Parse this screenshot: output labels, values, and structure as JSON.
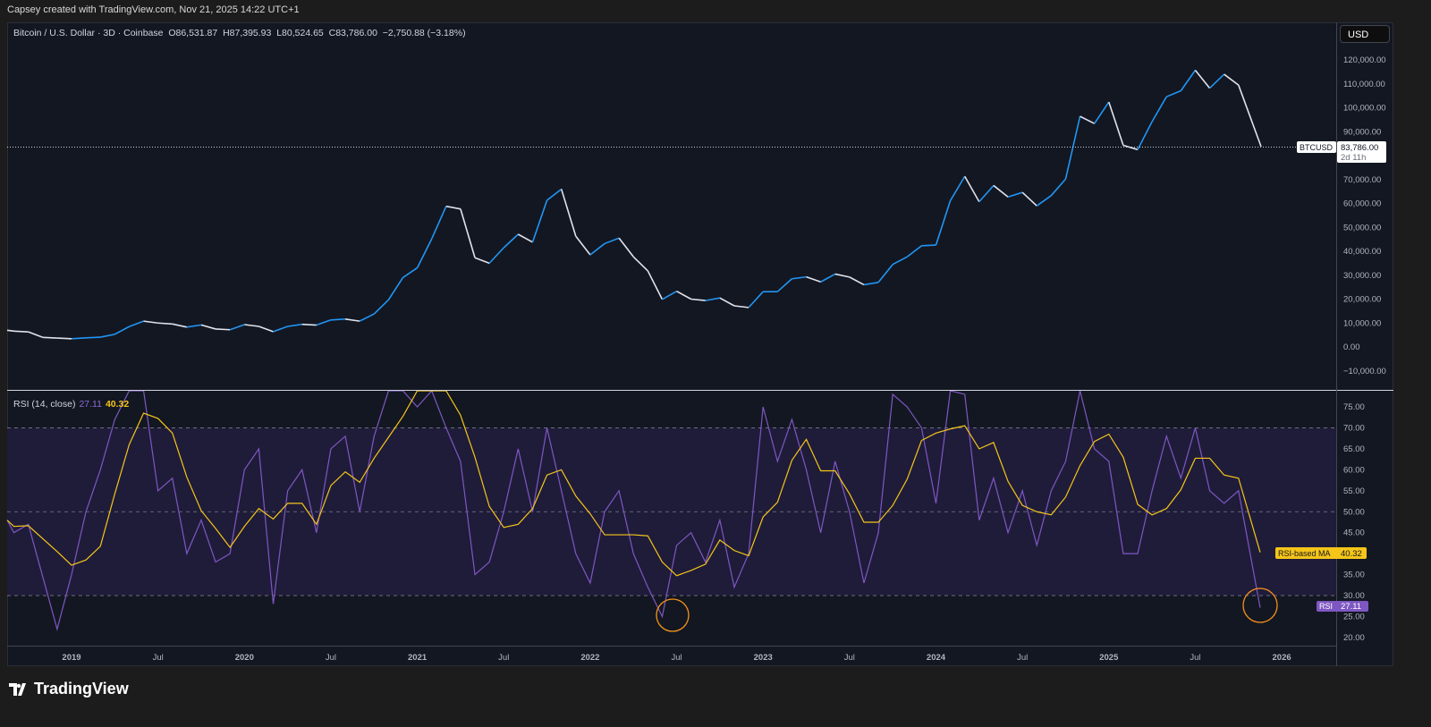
{
  "caption": "Capsey created with TradingView.com, Nov 21, 2025 14:22 UTC+1",
  "header": {
    "symbol": "Bitcoin / U.S. Dollar · 3D · Coinbase",
    "open": "O86,531.87",
    "high": "H87,395.93",
    "low": "L80,524.65",
    "close": "C83,786.00",
    "change": "−2,750.88 (−3.18%)"
  },
  "currency_button": "USD",
  "price_tag": {
    "symbol": "BTCUSD",
    "price": "83,786.00",
    "countdown": "2d 11h"
  },
  "rsi_legend": {
    "title": "RSI (14, close)",
    "rsi": "27.11",
    "ma": "40.32"
  },
  "rsi_tags": {
    "ma_label": "RSI-based MA",
    "ma_value": "40.32",
    "rsi_label": "RSI",
    "rsi_value": "27.11"
  },
  "logo": "TradingView",
  "colors": {
    "background": "#131722",
    "up": "#2196f3",
    "down": "#e0e3eb",
    "rsi": "#7e57c2",
    "rsi_ma": "#f5c518",
    "band": "#1f1c3a",
    "highlight_circle": "#f7931a"
  },
  "chart_data": [
    {
      "type": "line",
      "title": "Bitcoin / U.S. Dollar · 3D · Coinbase",
      "y_ticks": [
        "120,000.00",
        "110,000.00",
        "100,000.00",
        "90,000.00",
        "70,000.00",
        "60,000.00",
        "50,000.00",
        "40,000.00",
        "30,000.00",
        "20,000.00",
        "10,000.00",
        "0.00",
        "−10,000.00"
      ],
      "y_tick_values": [
        120000,
        110000,
        100000,
        90000,
        70000,
        60000,
        50000,
        40000,
        30000,
        20000,
        10000,
        0,
        -10000
      ],
      "ylim": [
        -13000,
        133000
      ],
      "x_ticks": [
        "2019",
        "Jul",
        "2020",
        "Jul",
        "2021",
        "Jul",
        "2022",
        "Jul",
        "2023",
        "Jul",
        "2024",
        "Jul",
        "2025",
        "Jul",
        "2026"
      ],
      "x_tick_dates": [
        "2019-01",
        "2019-07",
        "2020-01",
        "2020-07",
        "2021-01",
        "2021-07",
        "2022-01",
        "2022-07",
        "2023-01",
        "2023-07",
        "2024-01",
        "2024-07",
        "2025-01",
        "2025-07",
        "2026-01"
      ],
      "last_price": 83786,
      "series": [
        {
          "x": [
            "2018-08",
            "2018-09",
            "2018-10",
            "2018-11",
            "2018-12",
            "2019-01",
            "2019-02",
            "2019-03",
            "2019-04",
            "2019-05",
            "2019-06",
            "2019-07",
            "2019-08",
            "2019-09",
            "2019-10",
            "2019-11",
            "2019-12",
            "2020-01",
            "2020-02",
            "2020-03",
            "2020-04",
            "2020-05",
            "2020-06",
            "2020-07",
            "2020-08",
            "2020-09",
            "2020-10",
            "2020-11",
            "2020-12",
            "2021-01",
            "2021-02",
            "2021-03",
            "2021-04",
            "2021-05",
            "2021-06",
            "2021-07",
            "2021-08",
            "2021-09",
            "2021-10",
            "2021-11",
            "2021-12",
            "2022-01",
            "2022-02",
            "2022-03",
            "2022-04",
            "2022-05",
            "2022-06",
            "2022-07",
            "2022-08",
            "2022-09",
            "2022-10",
            "2022-11",
            "2022-12",
            "2023-01",
            "2023-02",
            "2023-03",
            "2023-04",
            "2023-05",
            "2023-06",
            "2023-07",
            "2023-08",
            "2023-09",
            "2023-10",
            "2023-11",
            "2023-12",
            "2024-01",
            "2024-02",
            "2024-03",
            "2024-04",
            "2024-05",
            "2024-06",
            "2024-07",
            "2024-08",
            "2024-09",
            "2024-10",
            "2024-11",
            "2024-12",
            "2025-01",
            "2025-02",
            "2025-03",
            "2025-04",
            "2025-05",
            "2025-06",
            "2025-07",
            "2025-08",
            "2025-09",
            "2025-10",
            "2025-11"
          ],
          "values": [
            7000,
            6600,
            6300,
            4000,
            3700,
            3450,
            3800,
            4100,
            5300,
            8500,
            10800,
            10000,
            9600,
            8300,
            9200,
            7500,
            7200,
            9350,
            8600,
            6400,
            8600,
            9450,
            9150,
            11300,
            11650,
            10800,
            13800,
            19700,
            29000,
            33100,
            45200,
            58800,
            57700,
            37300,
            35000,
            41500,
            47100,
            43800,
            61300,
            66000,
            46300,
            38500,
            43200,
            45500,
            37700,
            31800,
            19900,
            23300,
            20000,
            19400,
            20500,
            17200,
            16500,
            23100,
            23100,
            28500,
            29300,
            27200,
            30500,
            29200,
            26000,
            27000,
            34500,
            37700,
            42300,
            42600,
            61200,
            71300,
            60700,
            67500,
            62700,
            64600,
            59000,
            63300,
            70200,
            96400,
            93400,
            102400,
            84300,
            82500,
            94200,
            104600,
            107100,
            115700,
            108200,
            114000,
            109500,
            83786
          ]
        }
      ]
    },
    {
      "type": "line",
      "title": "RSI (14, close)",
      "y_ticks": [
        "75.00",
        "70.00",
        "65.00",
        "60.00",
        "55.00",
        "50.00",
        "45.00",
        "35.00",
        "30.00",
        "25.00",
        "20.00"
      ],
      "y_tick_values": [
        75,
        70,
        65,
        60,
        55,
        50,
        45,
        35,
        30,
        25,
        20
      ],
      "ylim": [
        18,
        79
      ],
      "bands": [
        30,
        50,
        70
      ],
      "series": [
        {
          "name": "RSI",
          "x": [
            "2018-08",
            "2018-09",
            "2018-10",
            "2018-12",
            "2019-01",
            "2019-02",
            "2019-03",
            "2019-04",
            "2019-05",
            "2019-06",
            "2019-07",
            "2019-08",
            "2019-09",
            "2019-10",
            "2019-11",
            "2019-12",
            "2020-01",
            "2020-02",
            "2020-03",
            "2020-04",
            "2020-05",
            "2020-06",
            "2020-07",
            "2020-08",
            "2020-09",
            "2020-10",
            "2020-11",
            "2020-12",
            "2021-01",
            "2021-02",
            "2021-03",
            "2021-04",
            "2021-05",
            "2021-06",
            "2021-07",
            "2021-08",
            "2021-09",
            "2021-10",
            "2021-11",
            "2021-12",
            "2022-01",
            "2022-02",
            "2022-03",
            "2022-04",
            "2022-05",
            "2022-06",
            "2022-07",
            "2022-08",
            "2022-09",
            "2022-10",
            "2022-11",
            "2022-12",
            "2023-01",
            "2023-02",
            "2023-03",
            "2023-04",
            "2023-05",
            "2023-06",
            "2023-07",
            "2023-08",
            "2023-09",
            "2023-10",
            "2023-11",
            "2023-12",
            "2024-01",
            "2024-02",
            "2024-03",
            "2024-04",
            "2024-05",
            "2024-06",
            "2024-07",
            "2024-08",
            "2024-09",
            "2024-10",
            "2024-11",
            "2024-12",
            "2025-01",
            "2025-02",
            "2025-03",
            "2025-04",
            "2025-05",
            "2025-06",
            "2025-07",
            "2025-08",
            "2025-09",
            "2025-10",
            "2025-11"
          ],
          "values": [
            48,
            45,
            47,
            22,
            35,
            50,
            60,
            72,
            82,
            80,
            55,
            58,
            40,
            48,
            38,
            40,
            60,
            65,
            28,
            55,
            60,
            45,
            65,
            68,
            50,
            68,
            85,
            88,
            75,
            85,
            70,
            62,
            35,
            38,
            50,
            65,
            50,
            70,
            55,
            40,
            33,
            50,
            55,
            40,
            32,
            25,
            42,
            45,
            38,
            48,
            32,
            40,
            75,
            62,
            72,
            60,
            45,
            62,
            50,
            33,
            45,
            78,
            75,
            70,
            52,
            82,
            78,
            48,
            58,
            45,
            55,
            42,
            55,
            62,
            85,
            65,
            62,
            40,
            40,
            55,
            68,
            58,
            70,
            55,
            52,
            55,
            27.11
          ]
        },
        {
          "name": "RSI-based MA",
          "last": 40.32
        }
      ]
    }
  ]
}
